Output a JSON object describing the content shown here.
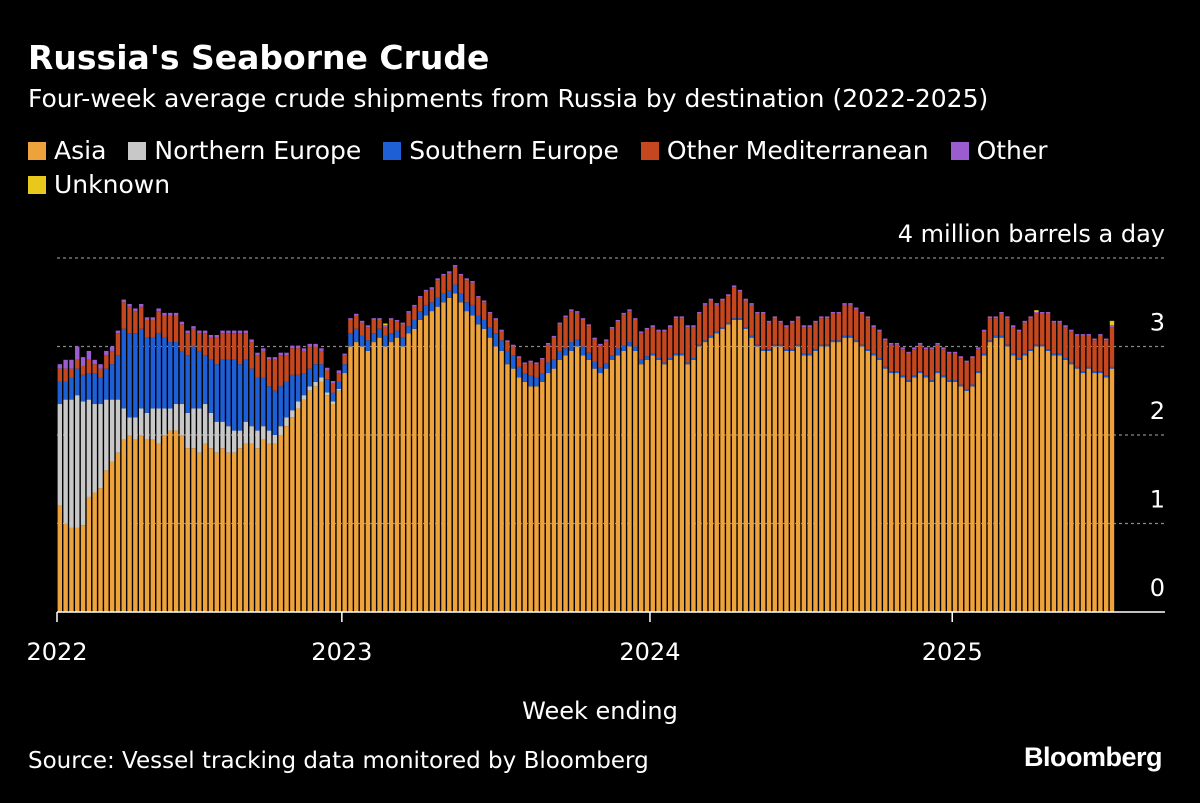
{
  "chart_data": {
    "type": "stacked-bar",
    "title": "Russia's Seaborne Crude",
    "subtitle": "Four-week average crude shipments from Russia by destination (2022-2025)",
    "xlabel": "Week ending",
    "source": "Source: Vessel tracking data monitored by Bloomberg",
    "logo": "Bloomberg",
    "grid": true,
    "ylim": [
      0,
      4
    ],
    "yticks": [
      0,
      1,
      2,
      3,
      {
        "value": 4,
        "label": "4 million barrels a day"
      }
    ],
    "categories": [
      "2022",
      null,
      null,
      null,
      null,
      null,
      null,
      null,
      null,
      null,
      null,
      null,
      null,
      null,
      null,
      null,
      null,
      null,
      null,
      null,
      null,
      null,
      null,
      null,
      null,
      null,
      null,
      null,
      null,
      null,
      null,
      null,
      null,
      null,
      null,
      null,
      null,
      null,
      null,
      null,
      null,
      null,
      null,
      null,
      null,
      null,
      null,
      null,
      null,
      "2023",
      null,
      null,
      null,
      null,
      null,
      null,
      null,
      null,
      null,
      null,
      null,
      null,
      null,
      null,
      null,
      null,
      null,
      null,
      null,
      null,
      null,
      null,
      null,
      null,
      null,
      null,
      null,
      null,
      null,
      null,
      null,
      null,
      null,
      null,
      null,
      null,
      null,
      null,
      null,
      null,
      null,
      null,
      null,
      null,
      null,
      null,
      null,
      null,
      null,
      null,
      null,
      null,
      "2024",
      null,
      null,
      null,
      null,
      null,
      null,
      null,
      null,
      null,
      null,
      null,
      null,
      null,
      null,
      null,
      null,
      null,
      null,
      null,
      null,
      null,
      null,
      null,
      null,
      null,
      null,
      null,
      null,
      null,
      null,
      null,
      null,
      null,
      null,
      null,
      null,
      null,
      null,
      null,
      null,
      null,
      null,
      null,
      null,
      null,
      null,
      null,
      null,
      null,
      null,
      null,
      "2025",
      null,
      null,
      null,
      null,
      null,
      null,
      null,
      null,
      null,
      null,
      null,
      null,
      null,
      null,
      null,
      null,
      null,
      null,
      null,
      null,
      null,
      null,
      null,
      null,
      null,
      null,
      null
    ],
    "series": [
      {
        "name": "Asia",
        "color": "#eea23c",
        "values": [
          1.2,
          1.0,
          0.95,
          0.95,
          0.98,
          1.3,
          1.35,
          1.4,
          1.6,
          1.7,
          1.8,
          1.95,
          2.0,
          1.95,
          2.0,
          1.95,
          1.95,
          1.9,
          2.0,
          2.05,
          2.05,
          2.0,
          1.85,
          1.85,
          1.8,
          1.9,
          1.85,
          1.8,
          1.85,
          1.8,
          1.8,
          1.85,
          1.9,
          1.9,
          1.85,
          1.95,
          1.9,
          1.9,
          2.0,
          2.1,
          2.2,
          2.3,
          2.4,
          2.5,
          2.55,
          2.6,
          2.45,
          2.35,
          2.5,
          2.7,
          3.0,
          3.05,
          3.0,
          2.95,
          3.05,
          3.1,
          3.0,
          3.05,
          3.1,
          3.0,
          3.15,
          3.2,
          3.3,
          3.35,
          3.4,
          3.45,
          3.5,
          3.55,
          3.6,
          3.5,
          3.4,
          3.35,
          3.25,
          3.2,
          3.1,
          3.0,
          2.95,
          2.8,
          2.75,
          2.65,
          2.6,
          2.55,
          2.55,
          2.6,
          2.7,
          2.75,
          2.85,
          2.9,
          2.95,
          3.0,
          2.9,
          2.85,
          2.75,
          2.7,
          2.75,
          2.85,
          2.9,
          2.95,
          3.0,
          2.95,
          2.8,
          2.85,
          2.9,
          2.85,
          2.8,
          2.85,
          2.9,
          2.9,
          2.8,
          2.85,
          3.0,
          3.05,
          3.1,
          3.15,
          3.2,
          3.25,
          3.3,
          3.3,
          3.2,
          3.1,
          3.0,
          2.95,
          2.95,
          3.0,
          3.0,
          2.95,
          2.95,
          3.0,
          2.9,
          2.9,
          2.95,
          3.0,
          3.0,
          3.05,
          3.05,
          3.1,
          3.1,
          3.05,
          3.0,
          2.95,
          2.9,
          2.85,
          2.75,
          2.7,
          2.7,
          2.65,
          2.6,
          2.65,
          2.7,
          2.65,
          2.6,
          2.7,
          2.65,
          2.6,
          2.6,
          2.55,
          2.5,
          2.55,
          2.7,
          2.9,
          3.05,
          3.1,
          3.1,
          3.0,
          2.9,
          2.85,
          2.9,
          2.95,
          3.0,
          3.0,
          2.95,
          2.9,
          2.9,
          2.85,
          2.8,
          2.75,
          2.7,
          2.75,
          2.7,
          2.7,
          2.65,
          2.75
        ]
      },
      {
        "name": "Northern Europe",
        "color": "#c8c8c8",
        "values": [
          1.15,
          1.4,
          1.45,
          1.5,
          1.4,
          1.1,
          1.0,
          0.95,
          0.8,
          0.7,
          0.6,
          0.35,
          0.2,
          0.25,
          0.3,
          0.3,
          0.35,
          0.4,
          0.3,
          0.25,
          0.3,
          0.35,
          0.4,
          0.45,
          0.5,
          0.45,
          0.4,
          0.35,
          0.3,
          0.3,
          0.25,
          0.2,
          0.25,
          0.2,
          0.2,
          0.15,
          0.15,
          0.1,
          0.1,
          0.1,
          0.08,
          0.08,
          0.05,
          0.05,
          0.05,
          0.05,
          0.03,
          0.03,
          0.02,
          0,
          0,
          0,
          0,
          0,
          0,
          0,
          0,
          0,
          0,
          0,
          0,
          0,
          0,
          0,
          0,
          0,
          0,
          0,
          0,
          0,
          0,
          0,
          0,
          0,
          0,
          0,
          0,
          0,
          0,
          0,
          0,
          0,
          0,
          0,
          0,
          0,
          0,
          0,
          0,
          0,
          0,
          0,
          0,
          0,
          0,
          0,
          0,
          0,
          0,
          0,
          0,
          0,
          0,
          0,
          0,
          0,
          0,
          0,
          0,
          0,
          0,
          0,
          0,
          0,
          0,
          0,
          0,
          0,
          0,
          0,
          0,
          0,
          0,
          0,
          0,
          0,
          0,
          0,
          0,
          0,
          0,
          0,
          0,
          0,
          0,
          0,
          0,
          0,
          0,
          0,
          0,
          0,
          0,
          0,
          0,
          0,
          0,
          0,
          0,
          0,
          0,
          0,
          0,
          0,
          0,
          0,
          0,
          0,
          0,
          0,
          0,
          0,
          0,
          0,
          0,
          0,
          0,
          0,
          0,
          0,
          0,
          0,
          0,
          0,
          0,
          0,
          0,
          0,
          0,
          0,
          0,
          0
        ]
      },
      {
        "name": "Southern Europe",
        "color": "#1f5fd6",
        "values": [
          0.25,
          0.2,
          0.25,
          0.3,
          0.3,
          0.3,
          0.35,
          0.3,
          0.35,
          0.4,
          0.5,
          0.9,
          0.95,
          0.95,
          0.9,
          0.85,
          0.8,
          0.85,
          0.8,
          0.75,
          0.7,
          0.6,
          0.65,
          0.7,
          0.65,
          0.55,
          0.6,
          0.65,
          0.7,
          0.75,
          0.8,
          0.75,
          0.7,
          0.65,
          0.6,
          0.55,
          0.5,
          0.5,
          0.45,
          0.4,
          0.4,
          0.3,
          0.25,
          0.2,
          0.2,
          0.15,
          0.15,
          0.1,
          0.08,
          0.1,
          0.15,
          0.15,
          0.12,
          0.12,
          0.1,
          0.1,
          0.12,
          0.1,
          0.08,
          0.1,
          0.08,
          0.1,
          0.1,
          0.12,
          0.1,
          0.1,
          0.1,
          0.08,
          0.1,
          0.1,
          0.1,
          0.12,
          0.1,
          0.1,
          0.12,
          0.15,
          0.12,
          0.15,
          0.15,
          0.12,
          0.1,
          0.12,
          0.1,
          0.1,
          0.12,
          0.1,
          0.1,
          0.08,
          0.1,
          0.08,
          0.1,
          0.08,
          0.08,
          0.06,
          0.06,
          0.05,
          0.08,
          0.06,
          0.05,
          0.05,
          0.05,
          0.04,
          0.02,
          0.02,
          0.02,
          0.02,
          0.02,
          0.02,
          0.02,
          0.02,
          0.02,
          0.02,
          0.02,
          0.02,
          0.02,
          0.02,
          0.02,
          0.02,
          0.02,
          0.02,
          0.02,
          0.02,
          0.02,
          0.02,
          0.02,
          0.02,
          0.02,
          0.02,
          0.02,
          0.02,
          0.02,
          0.02,
          0.02,
          0.02,
          0.02,
          0.02,
          0.02,
          0.02,
          0.02,
          0.02,
          0.02,
          0.02,
          0.02,
          0.02,
          0.02,
          0.02,
          0.02,
          0.02,
          0.02,
          0.02,
          0.02,
          0.02,
          0.02,
          0.02,
          0.02,
          0.02,
          0.02,
          0.02,
          0.02,
          0.02,
          0.02,
          0.02,
          0.02,
          0.02,
          0.02,
          0.02,
          0.02,
          0.02,
          0.02,
          0.02,
          0.02,
          0.02,
          0.02,
          0.02,
          0.02,
          0.02,
          0.02,
          0.02,
          0.02,
          0.02,
          0.02,
          0.02
        ]
      },
      {
        "name": "Other Mediterranean",
        "color": "#c4471f",
        "values": [
          0.15,
          0.15,
          0.1,
          0.1,
          0.1,
          0.15,
          0.1,
          0.1,
          0.15,
          0.15,
          0.25,
          0.3,
          0.3,
          0.25,
          0.25,
          0.2,
          0.2,
          0.25,
          0.25,
          0.3,
          0.3,
          0.3,
          0.25,
          0.2,
          0.2,
          0.25,
          0.25,
          0.3,
          0.3,
          0.3,
          0.3,
          0.35,
          0.3,
          0.3,
          0.25,
          0.3,
          0.3,
          0.35,
          0.35,
          0.3,
          0.3,
          0.3,
          0.25,
          0.25,
          0.2,
          0.15,
          0.1,
          0.1,
          0.1,
          0.1,
          0.15,
          0.15,
          0.15,
          0.15,
          0.15,
          0.1,
          0.1,
          0.15,
          0.1,
          0.15,
          0.15,
          0.15,
          0.15,
          0.15,
          0.15,
          0.2,
          0.2,
          0.2,
          0.2,
          0.2,
          0.25,
          0.25,
          0.2,
          0.2,
          0.15,
          0.15,
          0.1,
          0.1,
          0.1,
          0.1,
          0.1,
          0.15,
          0.15,
          0.15,
          0.2,
          0.25,
          0.3,
          0.35,
          0.35,
          0.3,
          0.3,
          0.3,
          0.25,
          0.25,
          0.25,
          0.3,
          0.3,
          0.35,
          0.35,
          0.3,
          0.3,
          0.3,
          0.3,
          0.3,
          0.35,
          0.35,
          0.4,
          0.4,
          0.4,
          0.35,
          0.35,
          0.4,
          0.4,
          0.3,
          0.3,
          0.3,
          0.35,
          0.3,
          0.3,
          0.35,
          0.35,
          0.4,
          0.3,
          0.3,
          0.25,
          0.25,
          0.3,
          0.3,
          0.3,
          0.3,
          0.3,
          0.3,
          0.3,
          0.3,
          0.3,
          0.35,
          0.35,
          0.35,
          0.35,
          0.35,
          0.3,
          0.3,
          0.3,
          0.3,
          0.3,
          0.3,
          0.3,
          0.3,
          0.3,
          0.3,
          0.35,
          0.3,
          0.3,
          0.3,
          0.3,
          0.3,
          0.3,
          0.3,
          0.25,
          0.25,
          0.25,
          0.2,
          0.25,
          0.3,
          0.3,
          0.3,
          0.35,
          0.35,
          0.35,
          0.35,
          0.4,
          0.35,
          0.35,
          0.35,
          0.35,
          0.35,
          0.4,
          0.35,
          0.35,
          0.4,
          0.4,
          0.45
        ]
      },
      {
        "name": "Other",
        "color": "#9a5ccf",
        "values": [
          0.05,
          0.1,
          0.1,
          0.15,
          0.1,
          0.1,
          0.05,
          0.05,
          0.05,
          0.05,
          0.03,
          0.03,
          0.03,
          0.03,
          0.03,
          0.03,
          0.03,
          0.03,
          0.03,
          0.03,
          0.03,
          0.03,
          0.03,
          0.03,
          0.03,
          0.03,
          0.03,
          0.03,
          0.03,
          0.03,
          0.03,
          0.03,
          0.03,
          0.03,
          0.03,
          0.03,
          0.03,
          0.03,
          0.03,
          0.03,
          0.03,
          0.03,
          0.03,
          0.03,
          0.03,
          0.03,
          0.03,
          0.03,
          0.03,
          0.02,
          0.02,
          0.02,
          0.02,
          0.02,
          0.02,
          0.02,
          0.02,
          0.02,
          0.02,
          0.02,
          0.02,
          0.02,
          0.02,
          0.02,
          0.02,
          0.02,
          0.02,
          0.02,
          0.02,
          0.02,
          0.02,
          0.02,
          0.02,
          0.02,
          0.02,
          0.02,
          0.02,
          0.02,
          0.02,
          0.02,
          0.02,
          0.02,
          0.02,
          0.02,
          0.02,
          0.02,
          0.02,
          0.02,
          0.02,
          0.02,
          0.02,
          0.02,
          0.02,
          0.02,
          0.02,
          0.02,
          0.02,
          0.02,
          0.02,
          0.02,
          0.02,
          0.02,
          0.02,
          0.02,
          0.02,
          0.02,
          0.02,
          0.02,
          0.02,
          0.02,
          0.02,
          0.02,
          0.02,
          0.02,
          0.02,
          0.02,
          0.02,
          0.02,
          0.02,
          0.02,
          0.02,
          0.02,
          0.02,
          0.02,
          0.02,
          0.02,
          0.02,
          0.02,
          0.02,
          0.02,
          0.02,
          0.02,
          0.02,
          0.02,
          0.02,
          0.02,
          0.02,
          0.02,
          0.02,
          0.02,
          0.02,
          0.02,
          0.02,
          0.02,
          0.02,
          0.02,
          0.02,
          0.02,
          0.02,
          0.02,
          0.02,
          0.02,
          0.02,
          0.02,
          0.02,
          0.02,
          0.02,
          0.02,
          0.02,
          0.02,
          0.02,
          0.02,
          0.02,
          0.02,
          0.02,
          0.02,
          0.02,
          0.02,
          0.02,
          0.02,
          0.02,
          0.02,
          0.02,
          0.02,
          0.02,
          0.02,
          0.02,
          0.02,
          0.02,
          0.02,
          0.02,
          0.02
        ]
      },
      {
        "name": "Unknown",
        "color": "#e8c81a",
        "values": [
          0,
          0,
          0,
          0,
          0,
          0,
          0,
          0,
          0,
          0,
          0,
          0,
          0,
          0,
          0,
          0,
          0,
          0,
          0,
          0,
          0,
          0,
          0,
          0,
          0,
          0,
          0,
          0,
          0,
          0,
          0,
          0,
          0,
          0,
          0,
          0,
          0,
          0,
          0,
          0,
          0,
          0,
          0,
          0,
          0,
          0,
          0,
          0,
          0,
          0,
          0,
          0,
          0,
          0,
          0,
          0,
          0.02,
          0,
          0,
          0,
          0,
          0,
          0,
          0,
          0,
          0,
          0,
          0,
          0,
          0,
          0,
          0,
          0,
          0,
          0,
          0,
          0,
          0,
          0,
          0,
          0,
          0,
          0,
          0,
          0,
          0,
          0,
          0,
          0,
          0,
          0,
          0,
          0,
          0,
          0,
          0,
          0,
          0,
          0,
          0,
          0,
          0,
          0,
          0,
          0,
          0,
          0,
          0,
          0,
          0,
          0,
          0,
          0,
          0,
          0,
          0,
          0,
          0,
          0,
          0,
          0,
          0,
          0,
          0,
          0,
          0,
          0,
          0,
          0,
          0,
          0,
          0,
          0,
          0,
          0,
          0,
          0,
          0,
          0,
          0,
          0,
          0,
          0,
          0,
          0,
          0,
          0,
          0,
          0,
          0,
          0,
          0,
          0,
          0,
          0,
          0,
          0,
          0,
          0,
          0,
          0,
          0,
          0,
          0,
          0,
          0,
          0,
          0,
          0.02,
          0,
          0,
          0,
          0,
          0,
          0,
          0,
          0,
          0,
          0,
          0,
          0,
          0.05
        ]
      }
    ]
  }
}
